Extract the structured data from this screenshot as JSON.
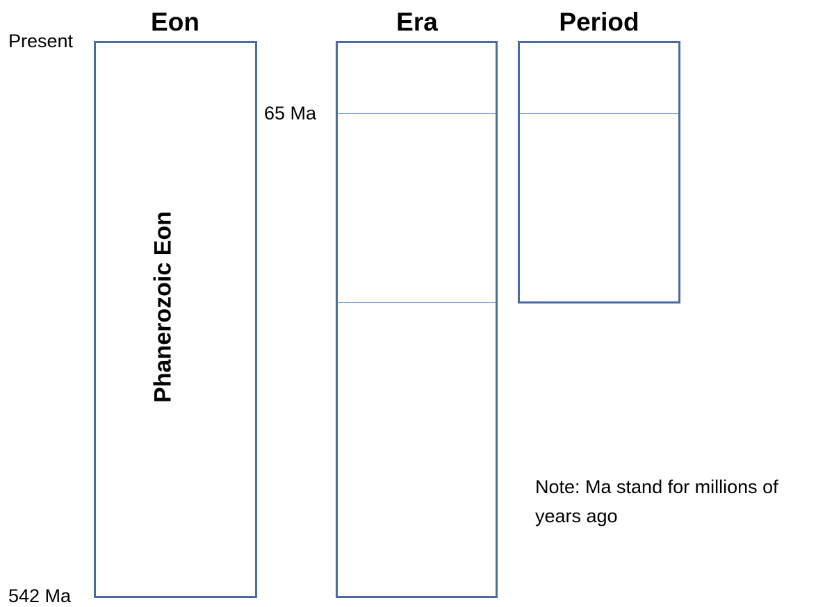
{
  "headers": {
    "eon": "Eon",
    "era": "Era",
    "period": "Period"
  },
  "time_labels": {
    "present": "Present",
    "ma_65": "65 Ma",
    "ma_542": "542 Ma"
  },
  "eon_box": {
    "label": "Phanerozoic Eon"
  },
  "note": "Note: Ma stand for millions of years ago",
  "colors": {
    "box_border": "#4a6aa0",
    "divider_line": "#7fa3d4"
  }
}
